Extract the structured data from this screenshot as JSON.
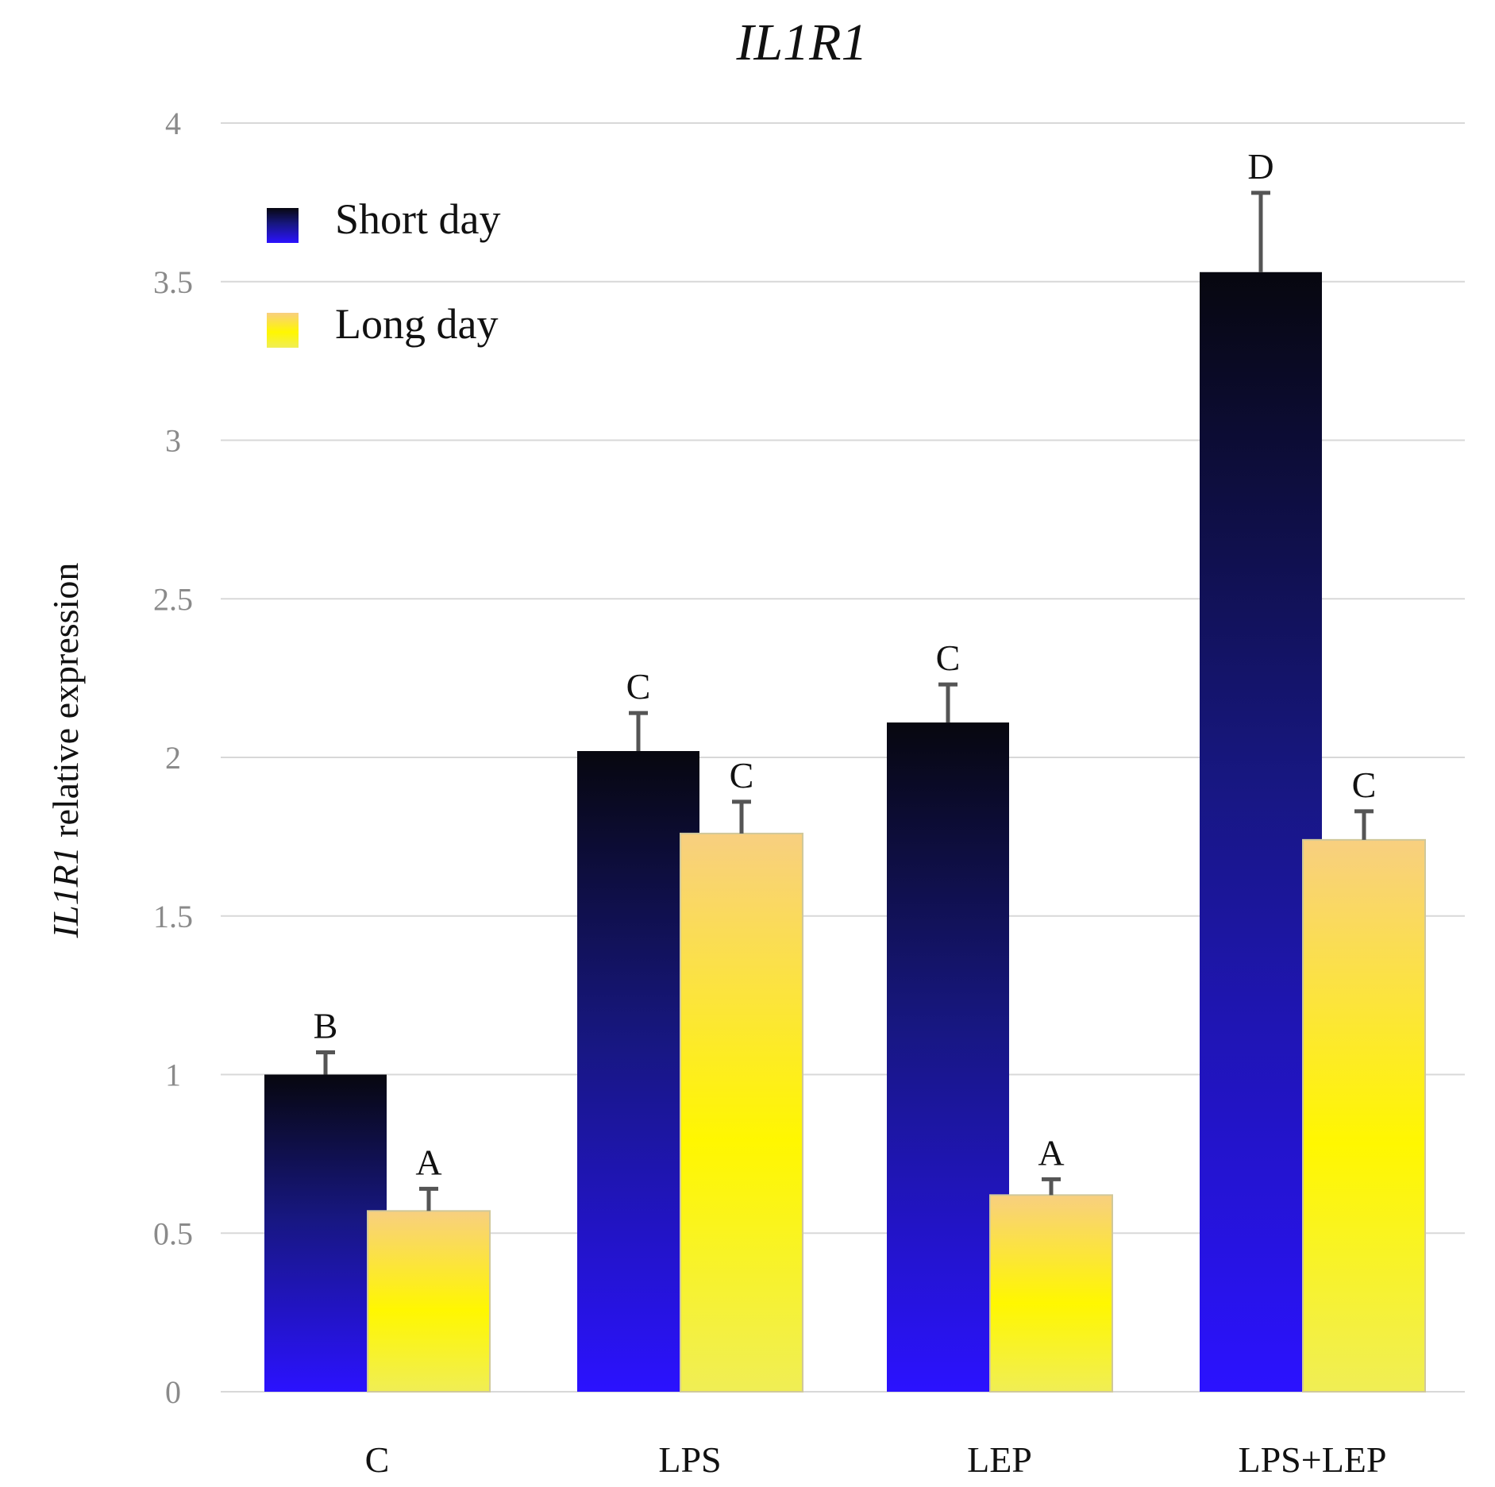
{
  "chart_data": {
    "type": "bar",
    "title": "IL1R1",
    "ylabel_italic": "IL1R1",
    "ylabel_rest": " relative expression",
    "xlabel": "",
    "ylim": [
      0,
      4
    ],
    "yticks": [
      0,
      0.5,
      1,
      1.5,
      2,
      2.5,
      3,
      3.5,
      4
    ],
    "ytick_labels": [
      "0",
      "0.5",
      "1",
      "1.5",
      "2",
      "2.5",
      "3",
      "3.5",
      "4"
    ],
    "grid": true,
    "legend": "top-left",
    "categories": [
      "C",
      "LPS",
      "LEP",
      "LPS+LEP"
    ],
    "series": [
      {
        "name": "Short day",
        "values": [
          1.0,
          2.02,
          2.11,
          3.53
        ],
        "errors": [
          0.07,
          0.12,
          0.12,
          0.25
        ],
        "letters": [
          "B",
          "C",
          "C",
          "D"
        ],
        "colors": {
          "top": "#080818",
          "mid": "#1a1a8a",
          "bottom": "#2a14ff"
        }
      },
      {
        "name": "Long day",
        "values": [
          0.57,
          1.76,
          0.62,
          1.74
        ],
        "errors": [
          0.07,
          0.1,
          0.05,
          0.09
        ],
        "letters": [
          "A",
          "C",
          "A",
          "C"
        ],
        "colors": {
          "top": "#f7d27a",
          "mid": "#fff510",
          "bottom": "#f2f04a"
        }
      }
    ]
  }
}
